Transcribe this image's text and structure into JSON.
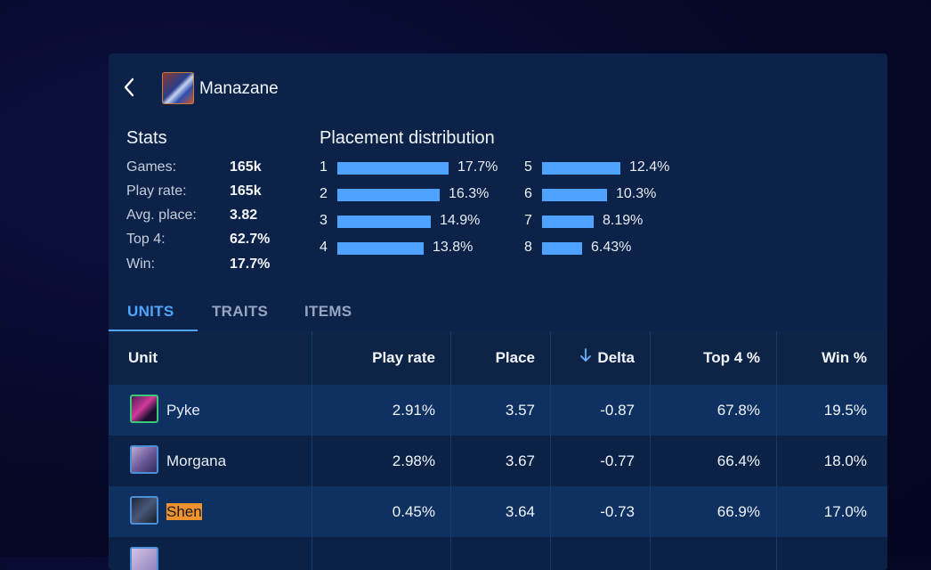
{
  "header": {
    "title": "Manazane"
  },
  "stats": {
    "title": "Stats",
    "rows": [
      {
        "label": "Games:",
        "value": "165k"
      },
      {
        "label": "Play rate:",
        "value": "165k"
      },
      {
        "label": "Avg. place:",
        "value": "3.82"
      },
      {
        "label": "Top 4:",
        "value": "62.7%"
      },
      {
        "label": "Win:",
        "value": "17.7%"
      }
    ]
  },
  "placement": {
    "title": "Placement distribution",
    "rows": [
      {
        "rank": "1",
        "pct": "17.7%",
        "value": 17.7
      },
      {
        "rank": "2",
        "pct": "16.3%",
        "value": 16.3
      },
      {
        "rank": "3",
        "pct": "14.9%",
        "value": 14.9
      },
      {
        "rank": "4",
        "pct": "13.8%",
        "value": 13.8
      },
      {
        "rank": "5",
        "pct": "12.4%",
        "value": 12.4
      },
      {
        "rank": "6",
        "pct": "10.3%",
        "value": 10.3
      },
      {
        "rank": "7",
        "pct": "8.19%",
        "value": 8.19
      },
      {
        "rank": "8",
        "pct": "6.43%",
        "value": 6.43
      }
    ]
  },
  "tabs": [
    {
      "label": "UNITS",
      "active": true
    },
    {
      "label": "TRAITS",
      "active": false
    },
    {
      "label": "ITEMS",
      "active": false
    }
  ],
  "table": {
    "headers": {
      "unit": "Unit",
      "play_rate": "Play rate",
      "place": "Place",
      "delta": "Delta",
      "top4": "Top 4 %",
      "win": "Win %"
    },
    "sort_icon": "arrow-down-icon",
    "rows": [
      {
        "name": "Pyke",
        "play_rate": "2.91%",
        "place": "3.57",
        "delta": "-0.87",
        "top4": "67.8%",
        "win": "19.5%",
        "highlight": false
      },
      {
        "name": "Morgana",
        "play_rate": "2.98%",
        "place": "3.67",
        "delta": "-0.77",
        "top4": "66.4%",
        "win": "18.0%",
        "highlight": false
      },
      {
        "name": "Shen",
        "play_rate": "0.45%",
        "place": "3.64",
        "delta": "-0.73",
        "top4": "66.9%",
        "win": "17.0%",
        "highlight": true
      }
    ]
  },
  "colors": {
    "accent": "#4ea6ff",
    "highlight": "#f0932f",
    "bar": "#4da3ff"
  }
}
